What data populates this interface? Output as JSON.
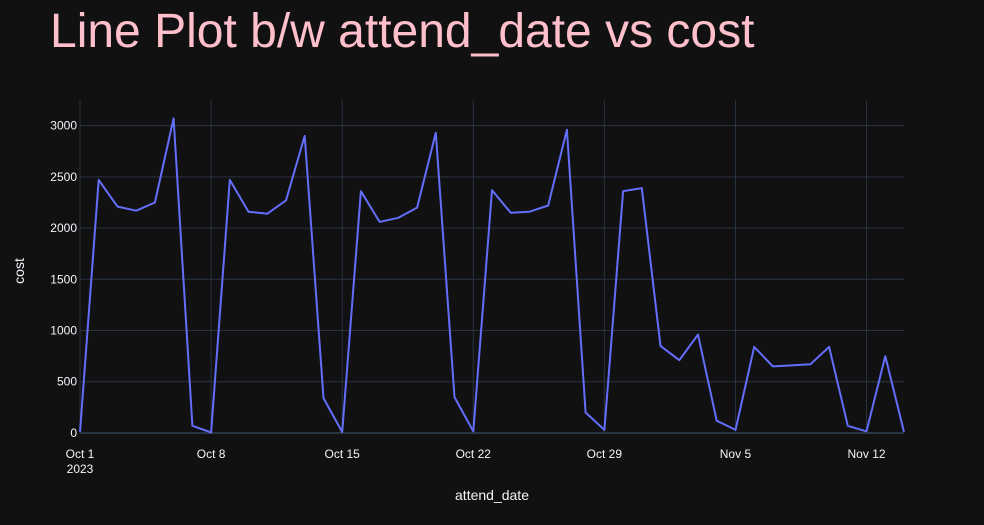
{
  "chart_data": {
    "type": "line",
    "title": "Line Plot b/w attend_date vs cost",
    "xlabel": "attend_date",
    "ylabel": "cost",
    "x_start": "2023-10-01",
    "x_end": "2023-11-14",
    "ylim": [
      -10,
      3250
    ],
    "y_ticks": [
      0,
      500,
      1000,
      1500,
      2000,
      2500,
      3000
    ],
    "x_ticks": [
      {
        "date": "2023-10-01",
        "label": "Oct 1",
        "sublabel": "2023"
      },
      {
        "date": "2023-10-08",
        "label": "Oct 8"
      },
      {
        "date": "2023-10-15",
        "label": "Oct 15"
      },
      {
        "date": "2023-10-22",
        "label": "Oct 22"
      },
      {
        "date": "2023-10-29",
        "label": "Oct 29"
      },
      {
        "date": "2023-11-05",
        "label": "Nov 5"
      },
      {
        "date": "2023-11-12",
        "label": "Nov 12"
      }
    ],
    "grid": true,
    "line_color": "#636efa",
    "series": [
      {
        "x": [
          "2023-10-01",
          "2023-10-02",
          "2023-10-03",
          "2023-10-04",
          "2023-10-05",
          "2023-10-06",
          "2023-10-07",
          "2023-10-08",
          "2023-10-09",
          "2023-10-10",
          "2023-10-11",
          "2023-10-12",
          "2023-10-13",
          "2023-10-14",
          "2023-10-15",
          "2023-10-16",
          "2023-10-17",
          "2023-10-18",
          "2023-10-19",
          "2023-10-20",
          "2023-10-21",
          "2023-10-22",
          "2023-10-23",
          "2023-10-24",
          "2023-10-25",
          "2023-10-26",
          "2023-10-27",
          "2023-10-28",
          "2023-10-29",
          "2023-10-30",
          "2023-10-31",
          "2023-11-01",
          "2023-11-02",
          "2023-11-03",
          "2023-11-04",
          "2023-11-05",
          "2023-11-06",
          "2023-11-07",
          "2023-11-08",
          "2023-11-09",
          "2023-11-10",
          "2023-11-11",
          "2023-11-12",
          "2023-11-13",
          "2023-11-14"
        ],
        "y": [
          10,
          2470,
          2210,
          2170,
          2250,
          3070,
          70,
          5,
          2470,
          2160,
          2140,
          2270,
          2900,
          340,
          10,
          2360,
          2060,
          2100,
          2200,
          2930,
          350,
          15,
          2370,
          2150,
          2160,
          2220,
          2960,
          200,
          30,
          2360,
          2390,
          850,
          710,
          960,
          120,
          30,
          840,
          650,
          660,
          670,
          840,
          70,
          15,
          750,
          10
        ]
      }
    ]
  }
}
